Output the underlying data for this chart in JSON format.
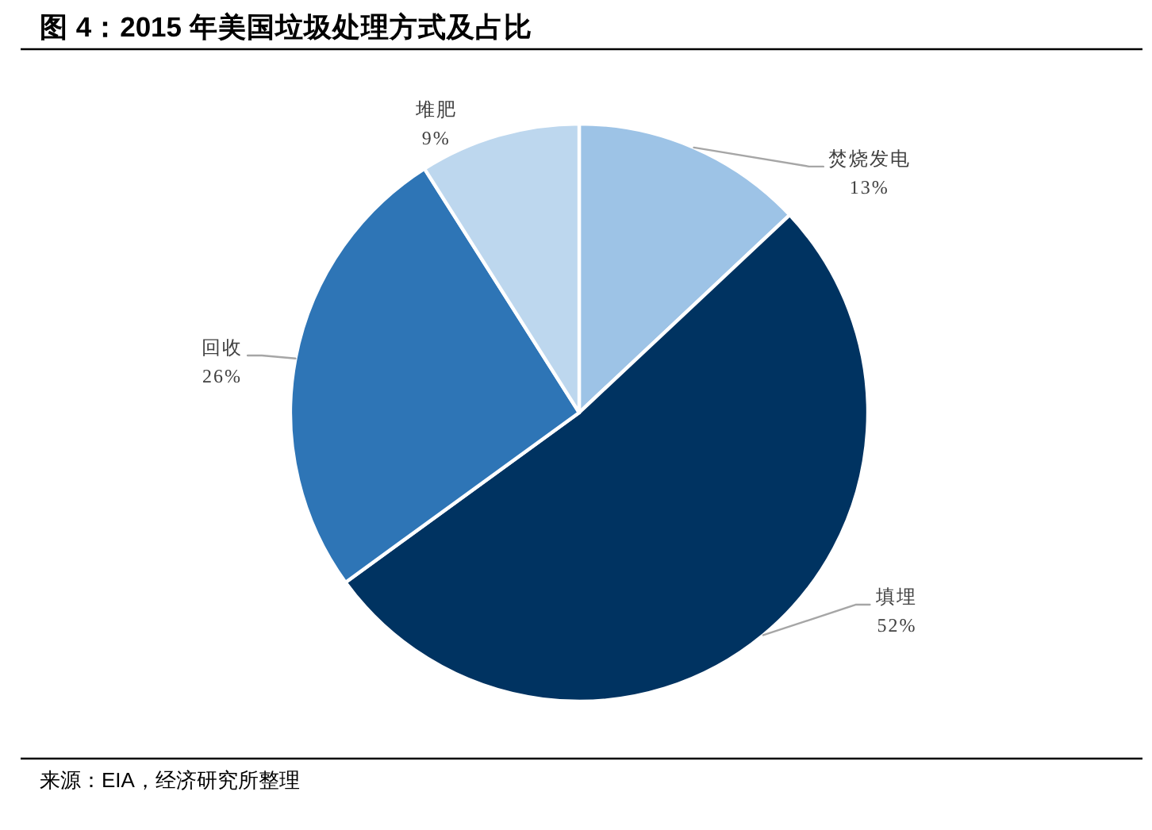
{
  "chart_data": {
    "type": "pie",
    "title": "图 4：2015 年美国垃圾处理方式及占比",
    "categories": [
      "焚烧发电",
      "填埋",
      "回收",
      "堆肥"
    ],
    "values": [
      13,
      52,
      26,
      9
    ],
    "colors": [
      "#9dc3e6",
      "#003361",
      "#2e75b6",
      "#bdd7ee"
    ],
    "value_labels": [
      "13%",
      "52%",
      "26%",
      "9%"
    ],
    "annotations": [
      "来源：EIA，经济研究所整理"
    ]
  }
}
